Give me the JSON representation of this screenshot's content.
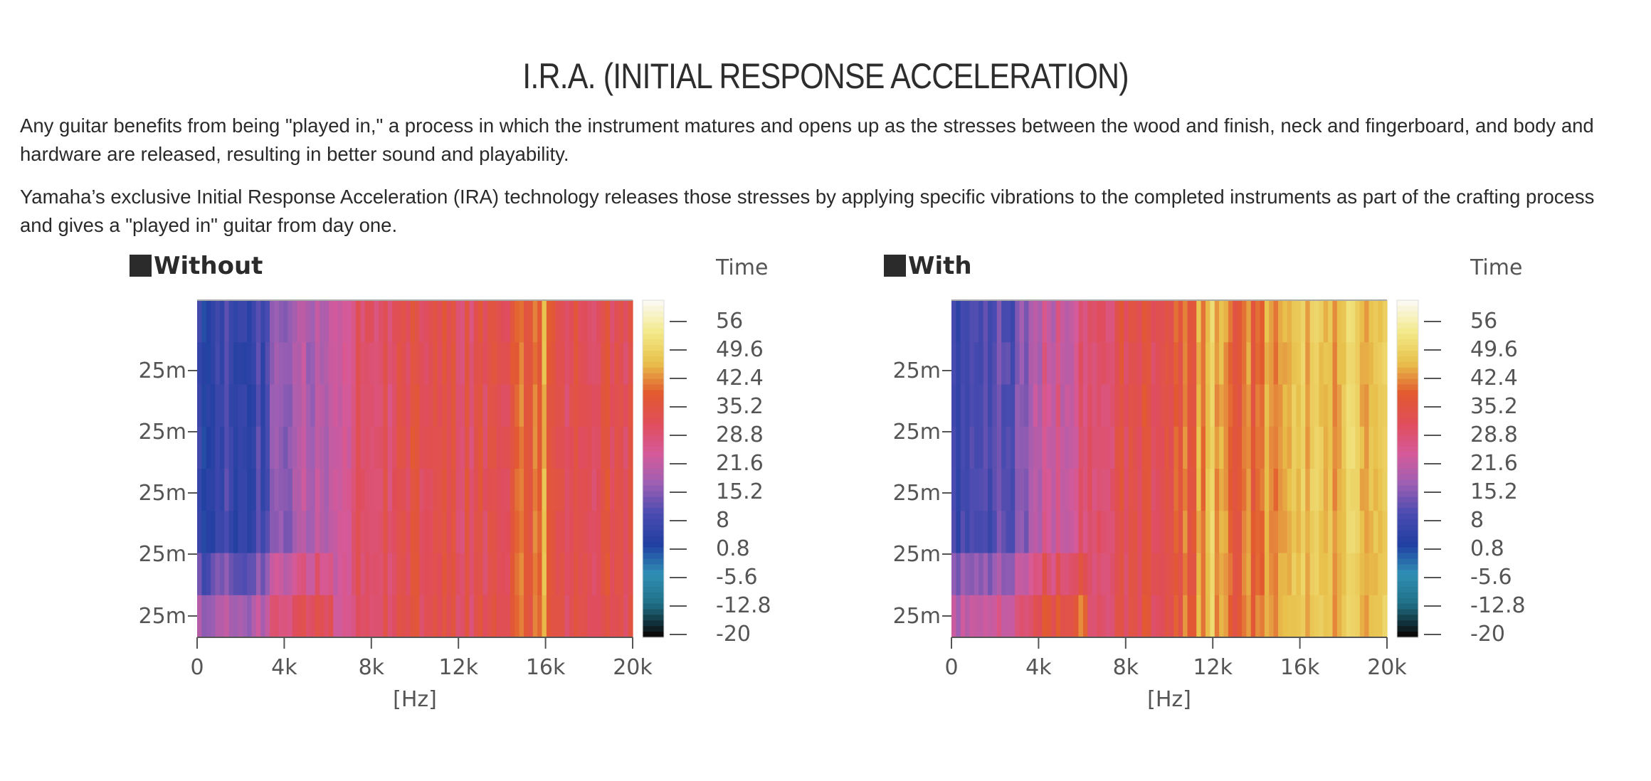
{
  "page": {
    "title": "I.R.A. (INITIAL RESPONSE ACCELERATION)",
    "paragraphs": [
      "Any guitar benefits from being \"played in,\" a process in which the instrument matures and opens up as the stresses between the wood and finish, neck and fingerboard, and body and hardware are released, resulting in better sound and playability.",
      "Yamaha’s exclusive Initial Response Acceleration (IRA) technology releases those stresses by applying specific vibrations to the completed instruments as part of the crafting process and gives a \"played in\" guitar from day one."
    ]
  },
  "colors": {
    "scale": [
      "#0b0b0b",
      "#1f6f86",
      "#2f8fb4",
      "#223fa2",
      "#4a4bb0",
      "#9d5fb3",
      "#d65a9a",
      "#e04d5a",
      "#e25a2f",
      "#e8c04b",
      "#f2e987",
      "#fbf8ee"
    ]
  },
  "chart_data": [
    {
      "type": "heatmap",
      "title": "Without",
      "xlabel": "[Hz]",
      "ylabel": "",
      "x_ticks": [
        "0",
        "4k",
        "8k",
        "12k",
        "16k",
        "20k"
      ],
      "x_range": [
        0,
        20000
      ],
      "y_ticks": [
        "25m",
        "25m",
        "25m",
        "25m",
        "25m"
      ],
      "colorbar_title": "Time",
      "colorbar_ticks": [
        "56",
        "49.6",
        "42.4",
        "35.2",
        "28.8",
        "21.6",
        "15.2",
        "8",
        "0.8",
        "-5.6",
        "-12.8",
        "-20"
      ],
      "colorbar_range": [
        -20,
        56
      ],
      "frequency_bins_khz": [
        0,
        1,
        2,
        3,
        4,
        5,
        6,
        7,
        8,
        9,
        10,
        11,
        12,
        13,
        14,
        15,
        16,
        17,
        18,
        19,
        20
      ],
      "level_by_frequency": [
        2,
        5,
        6,
        8,
        14,
        16,
        20,
        24,
        27,
        29,
        30,
        31,
        30,
        29,
        30,
        35,
        38,
        30,
        29,
        30,
        29
      ]
    },
    {
      "type": "heatmap",
      "title": "With",
      "xlabel": "[Hz]",
      "ylabel": "",
      "x_ticks": [
        "0",
        "4k",
        "8k",
        "12k",
        "16k",
        "20k"
      ],
      "x_range": [
        0,
        20000
      ],
      "y_ticks": [
        "25m",
        "25m",
        "25m",
        "25m",
        "25m"
      ],
      "colorbar_title": "Time",
      "colorbar_ticks": [
        "56",
        "49.6",
        "42.4",
        "35.2",
        "28.8",
        "21.6",
        "15.2",
        "8",
        "0.8",
        "-5.6",
        "-12.8",
        "-20"
      ],
      "colorbar_range": [
        -20,
        56
      ],
      "frequency_bins_khz": [
        0,
        1,
        2,
        3,
        4,
        5,
        6,
        7,
        8,
        9,
        10,
        11,
        12,
        13,
        14,
        15,
        16,
        17,
        18,
        19,
        20
      ],
      "level_by_frequency": [
        4,
        6,
        8,
        9,
        20,
        22,
        24,
        28,
        30,
        31,
        32,
        36,
        42,
        34,
        38,
        40,
        44,
        42,
        43,
        44,
        42
      ]
    }
  ]
}
